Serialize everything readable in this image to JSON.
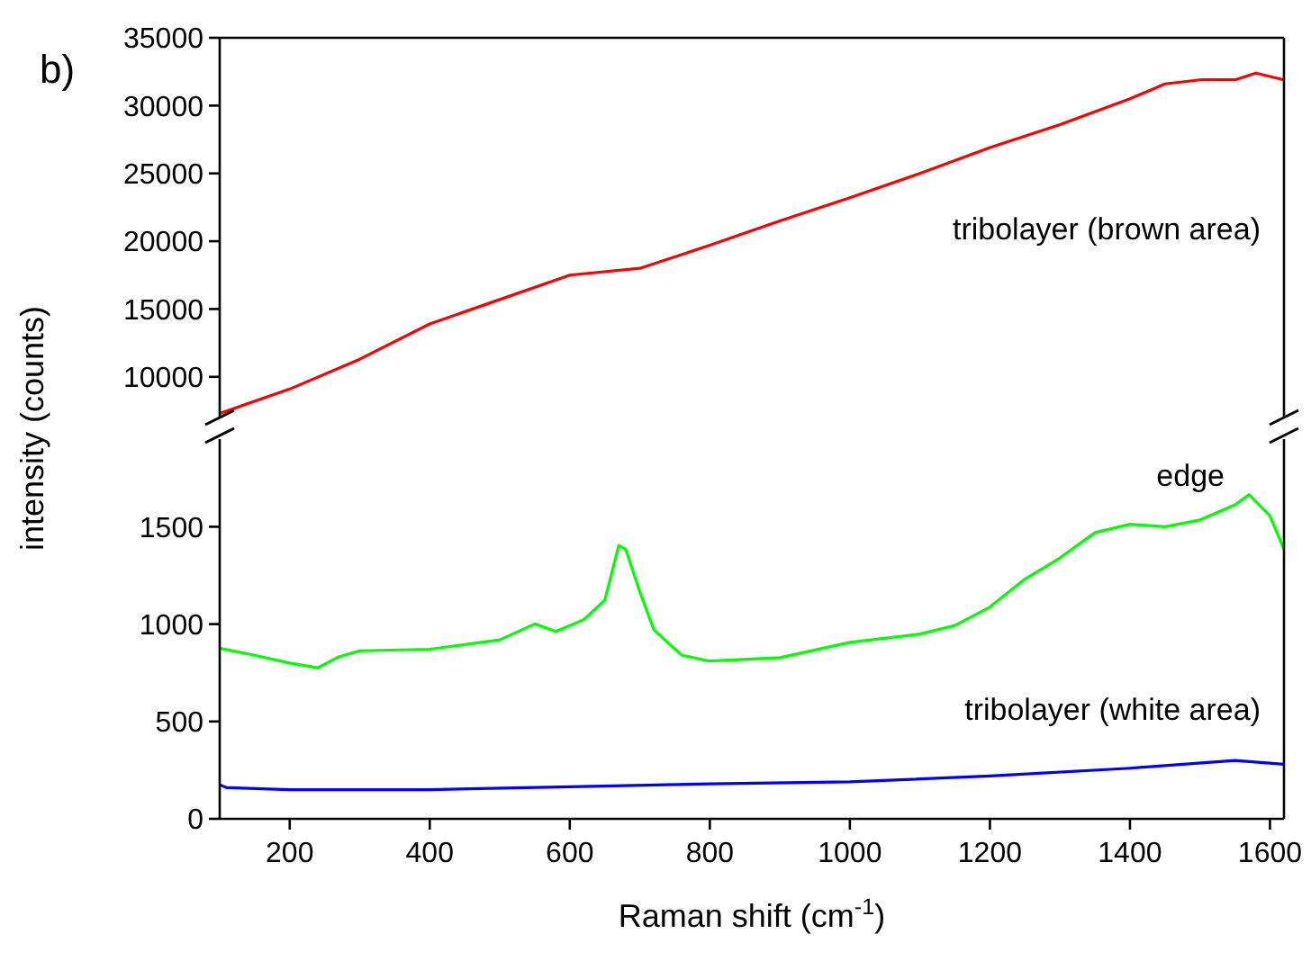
{
  "chart_data": [
    {
      "type": "line",
      "annotations": [
        "b)"
      ],
      "xlim": [
        100,
        1620
      ],
      "ylim": [
        7000,
        35000
      ],
      "yticks": [
        10000,
        15000,
        20000,
        25000,
        30000,
        35000
      ],
      "tick_labels": "y",
      "x": [
        100,
        200,
        300,
        400,
        500,
        600,
        700,
        800,
        900,
        1000,
        1100,
        1200,
        1300,
        1400,
        1450,
        1500,
        1550,
        1580,
        1620
      ],
      "series": [
        {
          "name": "tribolayer (brown area)",
          "color": "#ff0000",
          "values": [
            7300,
            9100,
            11300,
            13900,
            15700,
            17500,
            18000,
            19700,
            21500,
            23200,
            25000,
            26900,
            28600,
            30500,
            31600,
            31900,
            31900,
            32400,
            31900
          ]
        }
      ]
    },
    {
      "type": "line",
      "xlabel": "Raman shift (cm$^{-1}$)",
      "ylabel": "intensity (counts)",
      "xlim": [
        100,
        1620
      ],
      "ylim": [
        0,
        1950
      ],
      "xticks": [
        200,
        400,
        600,
        800,
        1000,
        1200,
        1400,
        1600
      ],
      "yticks": [
        0,
        500,
        1000,
        1500
      ],
      "series": [
        {
          "name": "edge",
          "color": "#00ff00",
          "x": [
            100,
            150,
            200,
            240,
            270,
            300,
            400,
            500,
            550,
            580,
            620,
            650,
            670,
            680,
            700,
            720,
            760,
            800,
            900,
            1000,
            1100,
            1150,
            1200,
            1250,
            1300,
            1350,
            1400,
            1450,
            1500,
            1550,
            1570,
            1600,
            1620
          ],
          "values": [
            876,
            840,
            800,
            776,
            832,
            863,
            871,
            919,
            1001,
            962,
            1023,
            1123,
            1404,
            1383,
            1166,
            971,
            840,
            810,
            828,
            906,
            949,
            993,
            1088,
            1231,
            1340,
            1470,
            1513,
            1500,
            1535,
            1613,
            1665,
            1556,
            1383
          ]
        },
        {
          "name": "tribolayer (white area)",
          "color": "#0000ff",
          "x": [
            100,
            110,
            200,
            400,
            600,
            800,
            1000,
            1200,
            1400,
            1550,
            1620
          ],
          "values": [
            175,
            160,
            150,
            150,
            165,
            180,
            190,
            220,
            260,
            300,
            280
          ]
        }
      ]
    }
  ]
}
